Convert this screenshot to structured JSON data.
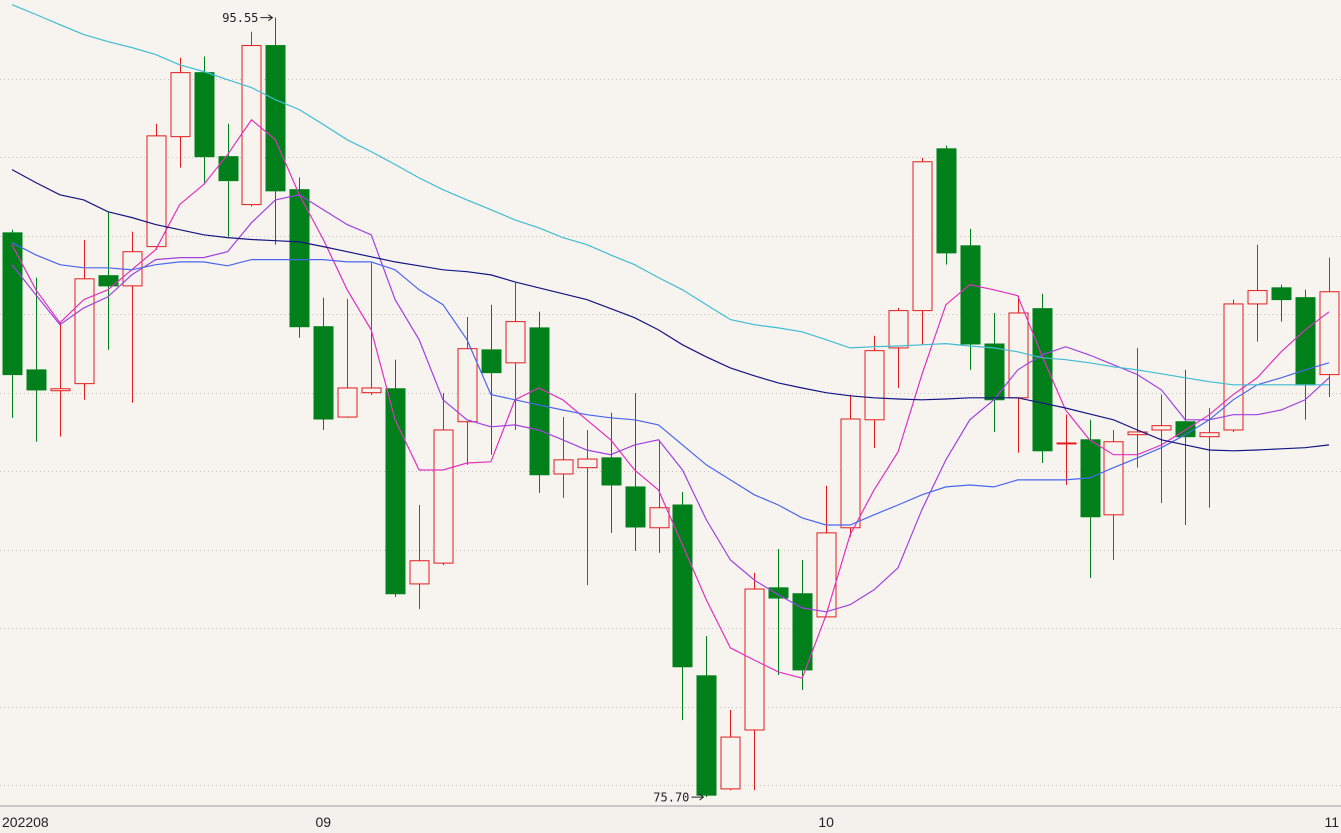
{
  "chart_data": {
    "type": "candlestick",
    "categories": [
      "202208",
      null,
      null,
      null,
      null,
      null,
      null,
      null,
      null,
      null,
      null,
      null,
      null,
      "09",
      null,
      null,
      null,
      null,
      null,
      null,
      null,
      null,
      null,
      null,
      null,
      null,
      null,
      null,
      null,
      null,
      null,
      null,
      null,
      null,
      "10",
      null,
      null,
      null,
      null,
      null,
      null,
      null,
      null,
      null,
      null,
      null,
      null,
      null,
      null,
      null,
      null,
      null,
      null,
      null,
      null,
      "11"
    ],
    "open": [
      90.07,
      86.58,
      86.05,
      86.23,
      88.98,
      88.72,
      89.72,
      92.52,
      94.15,
      92.01,
      90.79,
      94.84,
      91.17,
      87.68,
      85.38,
      86.0,
      86.1,
      81.13,
      81.66,
      85.26,
      87.09,
      86.76,
      87.65,
      83.93,
      84.09,
      84.34,
      83.6,
      82.56,
      83.14,
      78.79,
      75.91,
      77.41,
      81.03,
      80.88,
      80.29,
      82.56,
      85.31,
      87.14,
      88.09,
      92.21,
      89.74,
      87.24,
      85.87,
      88.14,
      84.7,
      84.8,
      82.89,
      84.93,
      85.05,
      85.26,
      84.88,
      85.05,
      88.26,
      88.67,
      88.42,
      86.46
    ],
    "high": [
      90.15,
      88.93,
      87.81,
      89.89,
      90.61,
      90.1,
      92.85,
      94.53,
      94.56,
      92.85,
      95.19,
      95.55,
      91.48,
      88.42,
      88.39,
      89.31,
      86.84,
      83.14,
      85.99,
      87.93,
      88.24,
      88.8,
      88.06,
      85.38,
      85.05,
      85.49,
      85.99,
      84.8,
      83.47,
      79.8,
      77.92,
      81.41,
      82.02,
      81.74,
      83.63,
      85.95,
      87.45,
      88.16,
      91.98,
      92.29,
      90.17,
      88.03,
      88.47,
      88.52,
      85.44,
      85.31,
      85.05,
      87.14,
      85.95,
      86.58,
      85.61,
      88.37,
      89.77,
      88.75,
      88.62,
      89.44
    ],
    "low": [
      85.36,
      84.75,
      84.88,
      85.82,
      87.09,
      85.74,
      89.64,
      91.73,
      91.3,
      89.97,
      90.74,
      89.77,
      87.4,
      85.05,
      85.36,
      85.94,
      80.8,
      80.49,
      81.61,
      84.16,
      84.42,
      85.05,
      83.45,
      83.32,
      81.1,
      82.43,
      81.97,
      81.92,
      77.66,
      75.7,
      75.88,
      75.88,
      78.81,
      78.43,
      80.29,
      82.33,
      84.59,
      86.12,
      87.22,
      89.26,
      86.58,
      85.0,
      84.47,
      84.21,
      83.65,
      81.28,
      81.74,
      84.09,
      83.19,
      82.63,
      83.07,
      85.0,
      87.3,
      87.81,
      85.31,
      85.89
    ],
    "close": [
      86.46,
      86.07,
      86.1,
      88.9,
      88.72,
      89.59,
      92.54,
      94.15,
      92.01,
      91.4,
      94.84,
      91.14,
      87.68,
      85.33,
      86.12,
      86.12,
      80.88,
      81.72,
      85.05,
      87.12,
      86.51,
      87.81,
      83.91,
      84.29,
      84.31,
      83.65,
      82.58,
      83.07,
      79.02,
      75.75,
      77.23,
      81.0,
      80.77,
      78.94,
      82.43,
      85.33,
      87.07,
      88.09,
      91.88,
      89.56,
      87.24,
      85.82,
      88.03,
      84.52,
      84.72,
      82.84,
      84.75,
      85.0,
      85.16,
      84.88,
      84.98,
      88.26,
      88.6,
      88.37,
      86.2,
      88.57
    ],
    "up_color": "#e41b1b",
    "down_color": "#00801a",
    "series": [
      {
        "color": "#e030c0",
        "values": [
          89.77,
          88.62,
          87.78,
          88.37,
          88.62,
          89.13,
          89.64,
          90.79,
          91.3,
          92.06,
          92.95,
          92.44,
          91.04,
          89.9,
          88.62,
          87.6,
          85.31,
          84.03,
          84.03,
          84.21,
          84.24,
          85.82,
          86.12,
          85.82,
          85.31,
          84.8,
          84.03,
          83.52,
          82.12,
          80.72,
          79.5,
          79.19,
          78.89,
          78.73,
          80.34,
          82.38,
          83.52,
          84.49,
          86.46,
          88.24,
          88.75,
          88.62,
          88.47,
          86.96,
          85.56,
          84.8,
          84.42,
          84.42,
          84.67,
          85.05,
          85.44,
          85.95,
          86.38,
          87.04,
          87.6,
          88.06
        ]
      },
      {
        "color": "#a040e0",
        "values": [
          89.26,
          88.49,
          87.73,
          88.16,
          88.44,
          89.0,
          89.39,
          89.44,
          89.44,
          89.59,
          90.33,
          90.91,
          91.04,
          90.66,
          90.28,
          90.02,
          88.37,
          87.35,
          85.82,
          85.31,
          85.13,
          85.18,
          85.05,
          84.8,
          84.54,
          84.42,
          84.67,
          84.8,
          84.03,
          82.76,
          81.74,
          81.23,
          80.85,
          80.52,
          80.42,
          80.6,
          80.98,
          81.54,
          83.02,
          84.29,
          85.31,
          85.82,
          86.58,
          86.96,
          87.17,
          86.96,
          86.71,
          86.46,
          86.07,
          85.31,
          85.31,
          85.44,
          85.44,
          85.56,
          85.82,
          86.38
        ]
      },
      {
        "color": "#4a66f0",
        "values": [
          89.82,
          89.51,
          89.26,
          89.18,
          89.18,
          89.13,
          89.26,
          89.33,
          89.33,
          89.23,
          89.39,
          89.39,
          89.39,
          89.39,
          89.33,
          89.33,
          89.13,
          88.62,
          88.24,
          87.35,
          85.95,
          85.82,
          85.69,
          85.56,
          85.44,
          85.36,
          85.31,
          85.18,
          84.67,
          84.16,
          83.78,
          83.4,
          83.14,
          82.81,
          82.63,
          82.63,
          82.89,
          83.14,
          83.4,
          83.6,
          83.65,
          83.6,
          83.78,
          83.78,
          83.78,
          83.83,
          84.09,
          84.34,
          84.6,
          84.93,
          85.31,
          85.82,
          86.2,
          86.38,
          86.58,
          86.76
        ]
      },
      {
        "color": "#141482",
        "values": [
          91.68,
          91.35,
          91.04,
          90.91,
          90.61,
          90.46,
          90.28,
          90.15,
          90.02,
          89.95,
          89.9,
          89.87,
          89.84,
          89.72,
          89.59,
          89.46,
          89.33,
          89.23,
          89.13,
          89.08,
          89.0,
          88.82,
          88.67,
          88.52,
          88.37,
          88.14,
          87.91,
          87.6,
          87.22,
          86.91,
          86.63,
          86.43,
          86.25,
          86.12,
          86.0,
          85.92,
          85.87,
          85.84,
          85.82,
          85.84,
          85.87,
          85.87,
          85.87,
          85.74,
          85.61,
          85.46,
          85.31,
          85.05,
          84.8,
          84.67,
          84.54,
          84.52,
          84.54,
          84.57,
          84.6,
          84.67
        ]
      },
      {
        "color": "#3fbcd2",
        "values": [
          95.88,
          95.63,
          95.37,
          95.12,
          94.94,
          94.79,
          94.61,
          94.35,
          94.18,
          93.97,
          93.77,
          93.46,
          93.21,
          92.83,
          92.44,
          92.14,
          91.81,
          91.47,
          91.17,
          90.91,
          90.66,
          90.4,
          90.2,
          89.95,
          89.77,
          89.51,
          89.26,
          88.93,
          88.62,
          88.24,
          87.86,
          87.73,
          87.65,
          87.55,
          87.35,
          87.14,
          87.17,
          87.19,
          87.22,
          87.25,
          87.19,
          87.14,
          87.04,
          86.89,
          86.84,
          86.76,
          86.66,
          86.58,
          86.48,
          86.38,
          86.28,
          86.2,
          86.2,
          86.2,
          86.2,
          86.2
        ]
      }
    ],
    "annotations": [
      {
        "value": 95.55,
        "label": "95.55"
      },
      {
        "value": 75.7,
        "label": "75.70"
      }
    ],
    "ylim": [
      75.5,
      96
    ],
    "grid_lines": [
      94,
      92,
      90,
      88,
      86,
      84,
      82,
      80,
      78,
      76
    ],
    "grid": true
  }
}
